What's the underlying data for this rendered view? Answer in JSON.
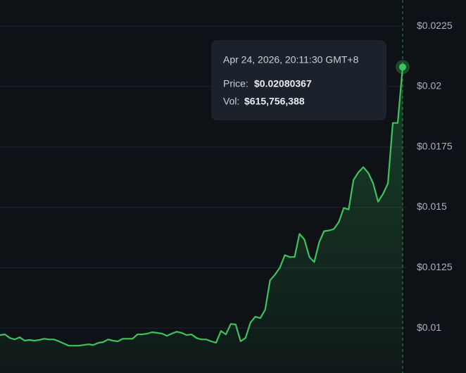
{
  "chart_data": {
    "type": "line",
    "values": [
      0.00971,
      0.00974,
      0.00959,
      0.00953,
      0.00962,
      0.00948,
      0.00951,
      0.00948,
      0.00951,
      0.00956,
      0.00953,
      0.00953,
      0.00945,
      0.00936,
      0.00927,
      0.00927,
      0.00927,
      0.0093,
      0.00933,
      0.0093,
      0.00939,
      0.00942,
      0.00953,
      0.00948,
      0.00945,
      0.00956,
      0.00956,
      0.00956,
      0.00974,
      0.00974,
      0.00977,
      0.00983,
      0.0098,
      0.00977,
      0.00968,
      0.00977,
      0.00985,
      0.0098,
      0.00971,
      0.00974,
      0.00959,
      0.00953,
      0.00953,
      0.00945,
      0.00939,
      0.00988,
      0.00974,
      0.01017,
      0.01015,
      0.00945,
      0.00959,
      0.01023,
      0.01047,
      0.01041,
      0.01076,
      0.01198,
      0.01221,
      0.0125,
      0.01302,
      0.01294,
      0.01294,
      0.0139,
      0.01366,
      0.01294,
      0.01273,
      0.01355,
      0.01401,
      0.01404,
      0.0141,
      0.01439,
      0.01497,
      0.01491,
      0.01613,
      0.01645,
      0.01666,
      0.01642,
      0.01599,
      0.01523,
      0.01555,
      0.01599,
      0.01849,
      0.01849,
      0.02080367
    ],
    "color": "#3ec35c",
    "ylim": [
      0.00814,
      0.02358
    ],
    "yticks": [
      {
        "value": 0.01,
        "label": "$0.01"
      },
      {
        "value": 0.0125,
        "label": "$0.0125"
      },
      {
        "value": 0.015,
        "label": "$0.015"
      },
      {
        "value": 0.0175,
        "label": "$0.0175"
      },
      {
        "value": 0.02,
        "label": "$0.02"
      },
      {
        "value": 0.0225,
        "label": "$0.0225"
      }
    ],
    "grid": true,
    "tooltip": {
      "date": "Apr 24, 2026, 20:11:30 GMT+8",
      "price_label": "Price:",
      "price": "$0.02080367",
      "vol_label": "Vol:",
      "vol": "$615,756,388"
    }
  }
}
